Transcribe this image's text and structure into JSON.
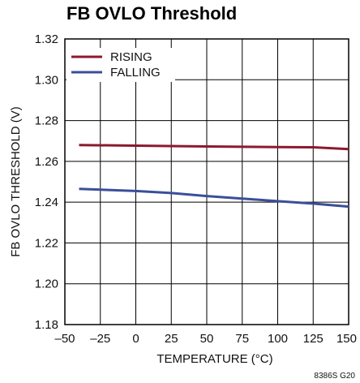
{
  "chart_data": {
    "type": "line",
    "title": "FB OVLO Threshold",
    "xlabel": "TEMPERATURE (°C)",
    "ylabel": "FB OVLO THRESHOLD (V)",
    "xlim": [
      -50,
      150
    ],
    "ylim": [
      1.18,
      1.32
    ],
    "x_ticks": [
      "–50",
      "–25",
      "0",
      "25",
      "50",
      "75",
      "100",
      "125",
      "150"
    ],
    "y_ticks": [
      "1.18",
      "1.20",
      "1.22",
      "1.24",
      "1.26",
      "1.28",
      "1.30",
      "1.32"
    ],
    "grid": true,
    "legend_position": "top-left",
    "series": [
      {
        "name": "RISING",
        "color": "#8b1a2e",
        "x": [
          -40,
          0,
          50,
          100,
          125,
          150
        ],
        "y": [
          1.268,
          1.2677,
          1.2673,
          1.267,
          1.2669,
          1.266
        ]
      },
      {
        "name": "FALLING",
        "color": "#3a4f9a",
        "x": [
          -40,
          0,
          25,
          50,
          100,
          125,
          150
        ],
        "y": [
          1.2465,
          1.2455,
          1.2445,
          1.243,
          1.2405,
          1.2393,
          1.2378
        ]
      }
    ],
    "figure_code": "8386S G20"
  }
}
